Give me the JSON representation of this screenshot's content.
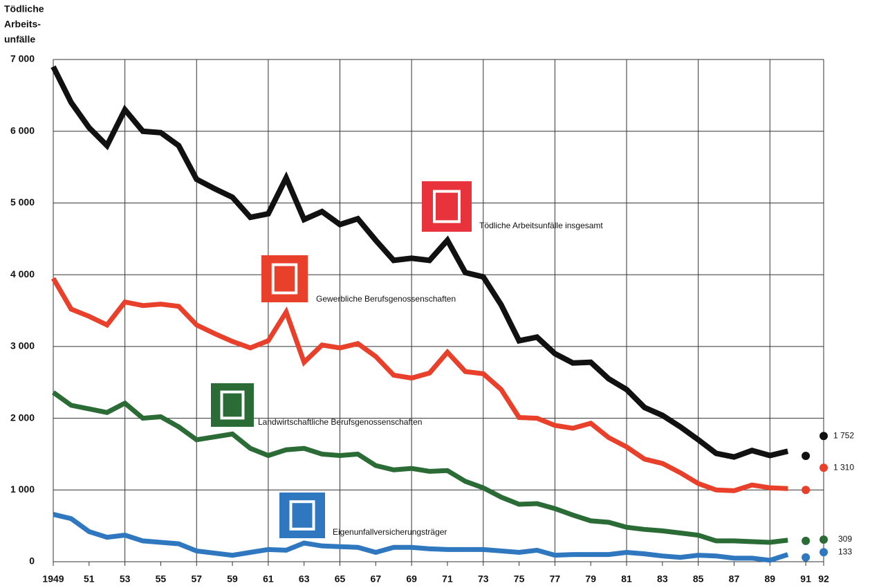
{
  "chart_data": {
    "type": "line",
    "y_label": [
      "Tödliche",
      "Arbeits-",
      "unfälle"
    ],
    "x": [
      1949,
      1950,
      1951,
      1952,
      1953,
      1954,
      1955,
      1956,
      1957,
      1958,
      1959,
      1960,
      1961,
      1962,
      1963,
      1964,
      1965,
      1966,
      1967,
      1968,
      1969,
      1970,
      1971,
      1972,
      1973,
      1974,
      1975,
      1976,
      1977,
      1978,
      1979,
      1980,
      1981,
      1982,
      1983,
      1984,
      1985,
      1986,
      1987,
      1988,
      1989,
      1990
    ],
    "series": [
      {
        "name": "Tödliche Arbeitsunfälle insgesamt",
        "color": "#111111",
        "values": [
          6900,
          6400,
          6050,
          5800,
          6300,
          6000,
          5980,
          5800,
          5330,
          5200,
          5080,
          4800,
          4850,
          5350,
          4770,
          4880,
          4700,
          4780,
          4480,
          4200,
          4230,
          4200,
          4480,
          4030,
          3970,
          3580,
          3080,
          3130,
          2900,
          2770,
          2780,
          2550,
          2400,
          2150,
          2040,
          1880,
          1700,
          1510,
          1460,
          1550,
          1480,
          1540
        ],
        "points": {
          "x": [
            1991,
            1992
          ],
          "values": [
            1475,
            1752
          ],
          "value_labels": [
            null,
            "1 752"
          ]
        }
      },
      {
        "name": "Gewerbliche Berufsgenossenschaften",
        "color": "#e8402a",
        "values": [
          3950,
          3520,
          3420,
          3300,
          3620,
          3570,
          3590,
          3560,
          3300,
          3180,
          3070,
          2980,
          3080,
          3480,
          2780,
          3020,
          2980,
          3040,
          2860,
          2600,
          2560,
          2630,
          2920,
          2650,
          2620,
          2400,
          2010,
          2000,
          1900,
          1860,
          1930,
          1730,
          1600,
          1430,
          1370,
          1240,
          1090,
          1000,
          990,
          1070,
          1030,
          1020
        ],
        "points": {
          "x": [
            1991,
            1992
          ],
          "values": [
            1000,
            1310
          ],
          "value_labels": [
            null,
            "1 310"
          ]
        }
      },
      {
        "name": "Landwirtschaftliche Berufsgenossenschaften",
        "color": "#2a6b36",
        "values": [
          2360,
          2180,
          2130,
          2080,
          2210,
          2000,
          2020,
          1880,
          1700,
          1740,
          1780,
          1580,
          1480,
          1560,
          1580,
          1500,
          1480,
          1500,
          1340,
          1280,
          1300,
          1260,
          1270,
          1120,
          1030,
          900,
          800,
          810,
          740,
          650,
          570,
          550,
          480,
          450,
          430,
          400,
          370,
          290,
          290,
          280,
          270,
          300
        ],
        "points": {
          "x": [
            1991,
            1992
          ],
          "values": [
            290,
            309
          ]
        }
      },
      {
        "name": "Eigenunfallversicherungsträger",
        "color": "#2f78c0",
        "values": [
          660,
          600,
          420,
          340,
          370,
          290,
          270,
          250,
          150,
          120,
          90,
          130,
          170,
          160,
          260,
          220,
          210,
          200,
          130,
          200,
          200,
          180,
          170,
          170,
          170,
          150,
          130,
          160,
          90,
          100,
          100,
          100,
          130,
          110,
          80,
          60,
          90,
          80,
          50,
          50,
          20,
          100
        ],
        "points": {
          "x": [
            1991,
            1992
          ],
          "values": [
            60,
            133
          ]
        }
      }
    ],
    "xlim": [
      1949,
      1992
    ],
    "xticks": [
      {
        "value": 1949,
        "label": "1949"
      },
      {
        "value": 1951,
        "label": "51"
      },
      {
        "value": 1953,
        "label": "53"
      },
      {
        "value": 1955,
        "label": "55"
      },
      {
        "value": 1957,
        "label": "57"
      },
      {
        "value": 1959,
        "label": "59"
      },
      {
        "value": 1961,
        "label": "61"
      },
      {
        "value": 1963,
        "label": "63"
      },
      {
        "value": 1965,
        "label": "65"
      },
      {
        "value": 1967,
        "label": "67"
      },
      {
        "value": 1969,
        "label": "69"
      },
      {
        "value": 1971,
        "label": "71"
      },
      {
        "value": 1973,
        "label": "73"
      },
      {
        "value": 1975,
        "label": "75"
      },
      {
        "value": 1977,
        "label": "77"
      },
      {
        "value": 1979,
        "label": "79"
      },
      {
        "value": 1981,
        "label": "81"
      },
      {
        "value": 1983,
        "label": "83"
      },
      {
        "value": 1985,
        "label": "85"
      },
      {
        "value": 1987,
        "label": "87"
      },
      {
        "value": 1989,
        "label": "89"
      },
      {
        "value": 1991,
        "label": "91"
      },
      {
        "value": 1992,
        "label": "92"
      }
    ],
    "ylim": [
      0,
      7000
    ],
    "yticks": [
      0,
      {
        "value": 1000,
        "label": "1 000"
      },
      {
        "value": 2000,
        "label": "2 000"
      },
      {
        "value": 3000,
        "label": "3 000"
      },
      {
        "value": 4000,
        "label": "4 000"
      },
      {
        "value": 5000,
        "label": "5 000"
      },
      {
        "value": 6000,
        "label": "6 000"
      },
      {
        "value": 7000,
        "label": "7 000"
      }
    ],
    "grid": true
  }
}
